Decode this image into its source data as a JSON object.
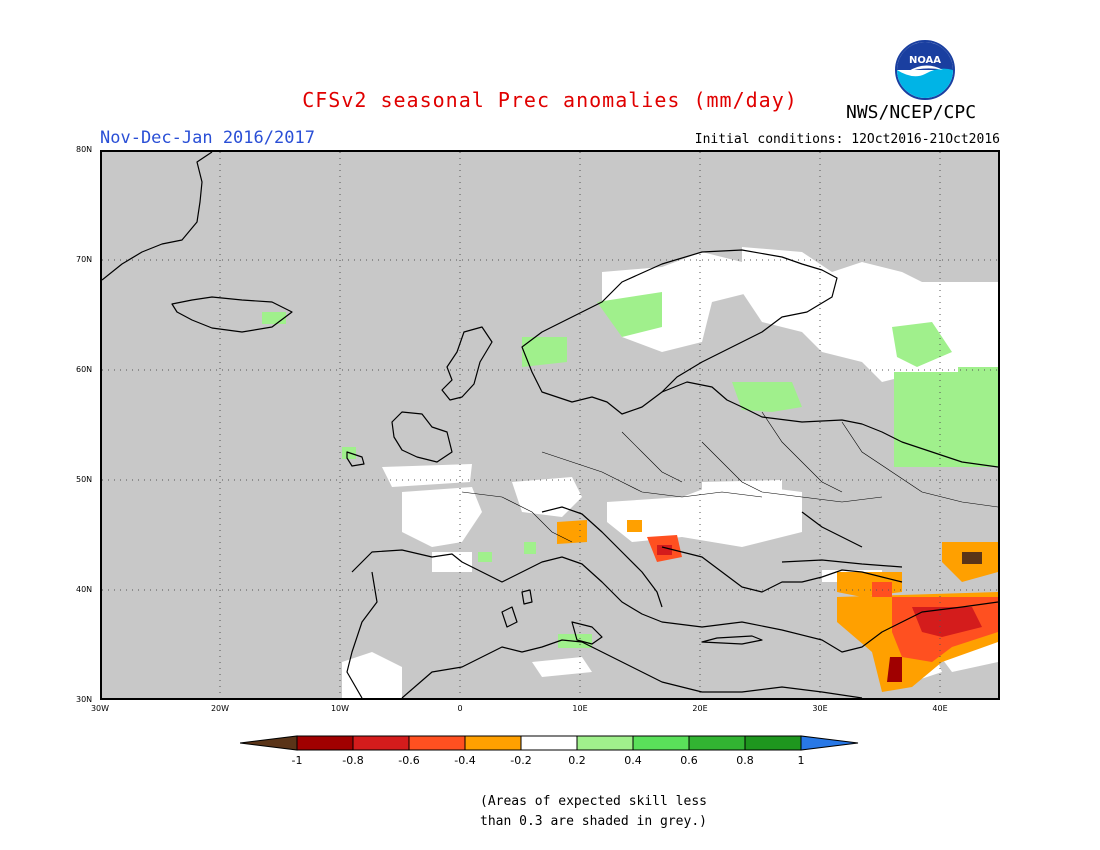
{
  "header": {
    "title": "CFSv2 seasonal Prec anomalies (mm/day)",
    "agency": "NWS/NCEP/CPC",
    "period": "Nov-Dec-Jan 2016/2017",
    "initial_conditions": "Initial conditions: 12Oct2016-21Oct2016",
    "logo_text": "NOAA"
  },
  "axes": {
    "lat_labels": [
      "80N",
      "70N",
      "60N",
      "50N",
      "40N",
      "30N"
    ],
    "lon_labels": [
      "30W",
      "20W",
      "10W",
      "0",
      "10E",
      "20E",
      "30E",
      "40E"
    ]
  },
  "colorbar": {
    "labels": [
      "-1",
      "-0.8",
      "-0.6",
      "-0.4",
      "-0.2",
      "0.2",
      "0.4",
      "0.6",
      "0.8",
      "1"
    ],
    "colors": [
      "#5a3418",
      "#a00000",
      "#d41c1c",
      "#ff5020",
      "#ffa000",
      "#ffffff",
      "#a0f08c",
      "#5ae05a",
      "#32b432",
      "#1e961e",
      "#2878e6"
    ]
  },
  "legend_note": {
    "line1": "(Areas of expected skill less",
    "line2": "than 0.3 are shaded in grey.)"
  },
  "colors": {
    "skill_grey": "#c8c8c8",
    "title_red": "#e00000",
    "period_blue": "#2a4fd6"
  }
}
